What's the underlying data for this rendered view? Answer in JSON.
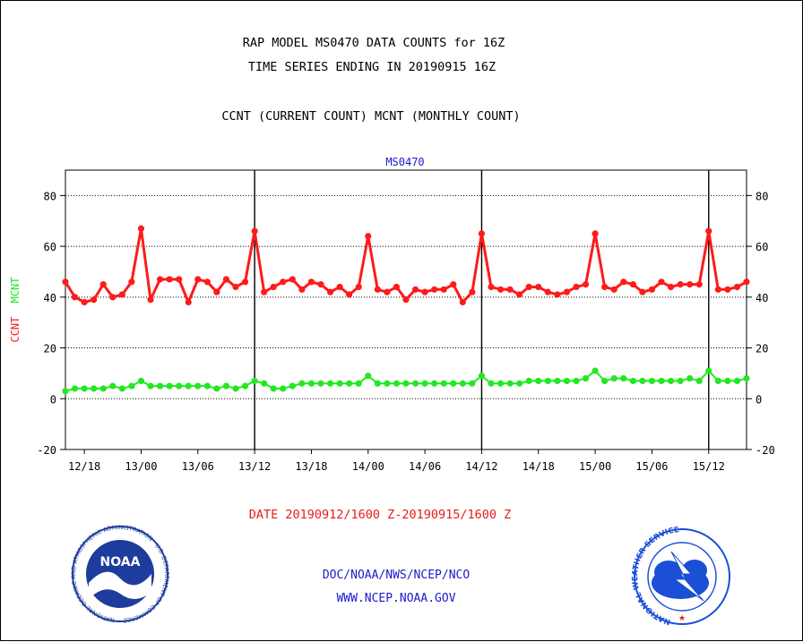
{
  "header": {
    "line1": "RAP MODEL MS0470 DATA COUNTS for 16Z",
    "line2": "TIME SERIES ENDING IN 20190915 16Z",
    "line3": "CCNT (CURRENT COUNT) MCNT (MONTHLY COUNT)"
  },
  "footer": {
    "date_range": "DATE 20190912/1600 Z-20190915/1600 Z",
    "org": "DOC/NOAA/NWS/NCEP/NCO",
    "url": "WWW.NCEP.NOAA.GOV",
    "noaa_logo_text": "NOAA",
    "noaa_ring_text": "NATIONAL OCEANIC AND ATMOSPHERIC ADMINISTRATION · U.S. DEPARTMENT OF COMMERCE",
    "nws_ring_text": "NATIONAL WEATHER SERVICE"
  },
  "colors": {
    "ccnt": "#ff1a1a",
    "mcnt": "#22e822",
    "station": "#1a1acc",
    "date": "#e81a1a",
    "footer_text": "#1a1acc",
    "noaa_blue": "#1e3c9c",
    "nws_blue": "#1a4fd6"
  },
  "chart_data": {
    "type": "line",
    "title": "MS0470",
    "ylabel_left_parts": [
      "CCNT",
      "MCNT"
    ],
    "ylim": [
      -20,
      90
    ],
    "yticks": [
      -20,
      0,
      20,
      40,
      60,
      80
    ],
    "grid": true,
    "xlim": [
      0,
      72
    ],
    "x_tick_positions_hours": [
      2,
      8,
      14,
      20,
      26,
      32,
      38,
      44,
      50,
      56,
      62,
      68
    ],
    "x_tick_labels": [
      "12/18",
      "13/00",
      "13/06",
      "13/12",
      "13/18",
      "14/00",
      "14/06",
      "14/12",
      "14/18",
      "15/00",
      "15/06",
      "15/12"
    ],
    "vertical_marker_hours": [
      20,
      44,
      68
    ],
    "x_hours": [
      0,
      1,
      2,
      3,
      4,
      5,
      6,
      7,
      8,
      9,
      10,
      11,
      12,
      13,
      14,
      15,
      16,
      17,
      18,
      19,
      20,
      21,
      22,
      23,
      24,
      25,
      26,
      27,
      28,
      29,
      30,
      31,
      32,
      33,
      34,
      35,
      36,
      37,
      38,
      39,
      40,
      41,
      42,
      43,
      44,
      45,
      46,
      47,
      48,
      49,
      50,
      51,
      52,
      53,
      54,
      55,
      56,
      57,
      58,
      59,
      60,
      61,
      62,
      63,
      64,
      65,
      66,
      67,
      68,
      69,
      70,
      71,
      72
    ],
    "series": [
      {
        "name": "CCNT",
        "values": [
          46,
          40,
          38,
          39,
          45,
          40,
          41,
          46,
          67,
          39,
          47,
          47,
          47,
          38,
          47,
          46,
          42,
          47,
          44,
          46,
          66,
          42,
          44,
          46,
          47,
          43,
          46,
          45,
          42,
          44,
          41,
          44,
          64,
          43,
          42,
          44,
          39,
          43,
          42,
          43,
          43,
          45,
          38,
          42,
          65,
          44,
          43,
          43,
          41,
          44,
          44,
          42,
          41,
          42,
          44,
          45,
          65,
          44,
          43,
          46,
          45,
          42,
          43,
          46,
          44,
          45,
          45,
          45,
          66,
          43,
          43,
          44,
          46
        ]
      },
      {
        "name": "MCNT",
        "values": [
          3,
          4,
          4,
          4,
          4,
          5,
          4,
          5,
          7,
          5,
          5,
          5,
          5,
          5,
          5,
          5,
          4,
          5,
          4,
          5,
          7,
          6,
          4,
          4,
          5,
          6,
          6,
          6,
          6,
          6,
          6,
          6,
          9,
          6,
          6,
          6,
          6,
          6,
          6,
          6,
          6,
          6,
          6,
          6,
          9,
          6,
          6,
          6,
          6,
          7,
          7,
          7,
          7,
          7,
          7,
          8,
          11,
          7,
          8,
          8,
          7,
          7,
          7,
          7,
          7,
          7,
          8,
          7,
          11,
          7,
          7,
          7,
          8
        ]
      }
    ]
  }
}
